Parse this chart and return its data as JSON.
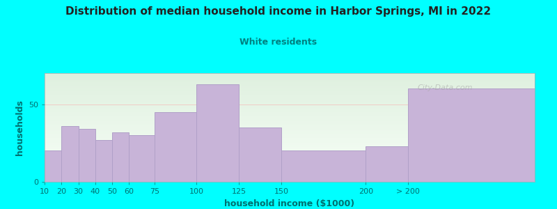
{
  "title": "Distribution of median household income in Harbor Springs, MI in 2022",
  "subtitle": "White residents",
  "xlabel": "household income ($1000)",
  "ylabel": "households",
  "background_color": "#00FFFF",
  "plot_bg_gradient_top": "#dff0df",
  "plot_bg_gradient_bottom": "#f8fff8",
  "bar_color": "#c8b4d8",
  "bar_edge_color": "#b0a0c8",
  "title_color": "#222222",
  "subtitle_color": "#008080",
  "axis_label_color": "#007070",
  "tick_label_color": "#007070",
  "watermark": "City-Data.com",
  "categories": [
    "10",
    "20",
    "30",
    "40",
    "50",
    "60",
    "75",
    "100",
    "125",
    "150",
    "200",
    "> 200"
  ],
  "values": [
    20,
    36,
    34,
    27,
    32,
    30,
    45,
    63,
    35,
    20,
    23,
    60
  ],
  "bar_lefts": [
    10,
    20,
    30,
    40,
    50,
    60,
    75,
    100,
    125,
    150,
    200,
    225
  ],
  "bar_widths": [
    10,
    10,
    10,
    10,
    10,
    15,
    25,
    25,
    25,
    50,
    25,
    75
  ],
  "ylim": [
    0,
    70
  ],
  "yticks": [
    0,
    50
  ],
  "xlim_left": 10,
  "xlim_right": 300,
  "gridline_color": "#ff9999",
  "gridline_y": 50
}
